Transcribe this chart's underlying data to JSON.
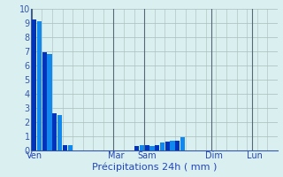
{
  "title": "",
  "xlabel": "Précipitations 24h ( mm )",
  "background_color": "#daf0f0",
  "bar_color_dark": "#0033bb",
  "bar_color_light": "#1188ee",
  "grid_color": "#aabbbb",
  "grid_color_day": "#556677",
  "ylim": [
    0,
    10
  ],
  "yticks": [
    0,
    1,
    2,
    3,
    4,
    5,
    6,
    7,
    8,
    9,
    10
  ],
  "values": [
    9.2,
    9.1,
    6.9,
    6.8,
    2.6,
    2.5,
    0.35,
    0.35,
    0,
    0,
    0,
    0,
    0,
    0,
    0,
    0,
    0,
    0,
    0,
    0,
    0.3,
    0.35,
    0.35,
    0.3,
    0.35,
    0.55,
    0.6,
    0.65,
    0.65,
    0.95,
    0,
    0,
    0,
    0,
    0,
    0,
    0,
    0,
    0,
    0,
    0,
    0,
    0,
    0,
    0,
    0,
    0,
    0
  ],
  "num_bars": 48,
  "day_labels": [
    "Ven",
    "Mar",
    "Sam",
    "Dim",
    "Lun"
  ],
  "day_tick_positions": [
    0,
    16,
    22,
    35,
    43
  ],
  "day_line_positions": [
    0,
    16,
    22,
    35,
    43
  ],
  "xlabel_fontsize": 8,
  "ytick_fontsize": 7,
  "xtick_fontsize": 7
}
